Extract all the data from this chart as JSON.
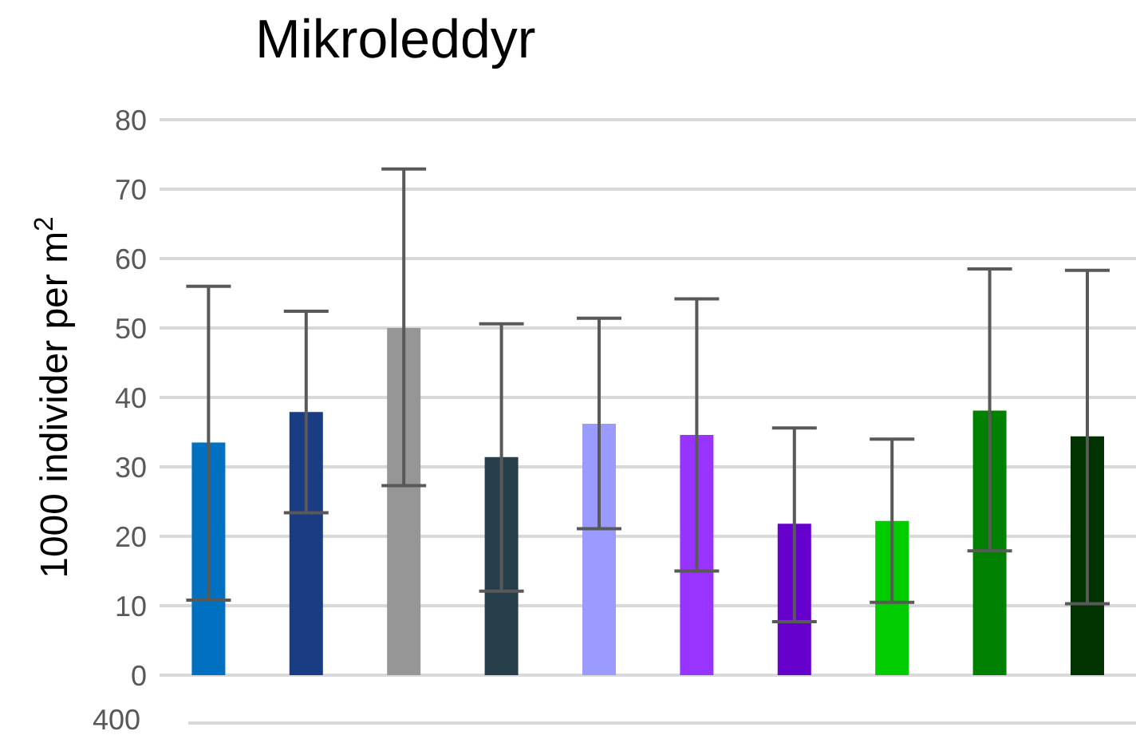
{
  "chart_data": {
    "type": "bar",
    "title": "Mikroleddyr",
    "ylabel": "1000 individer per m$^{2}$",
    "categories": [
      null,
      null,
      null,
      null,
      null,
      null,
      null,
      null,
      null,
      null
    ],
    "values": [
      33.5,
      37.9,
      50.0,
      31.4,
      36.2,
      34.6,
      21.8,
      22.2,
      38.1,
      34.4
    ],
    "colors": [
      "#0070c0",
      "#1a3c82",
      "#969696",
      "#263f4a",
      "#9b9bff",
      "#9933ff",
      "#6600cc",
      "#00cc00",
      "#008000",
      "#003300"
    ],
    "errors": [
      [
        10.8,
        56.0
      ],
      [
        23.4,
        52.4
      ],
      [
        27.3,
        72.9
      ],
      [
        12.1,
        50.6
      ],
      [
        21.1,
        51.4
      ],
      [
        15.0,
        54.2
      ],
      [
        7.7,
        35.6
      ],
      [
        10.5,
        34.0
      ],
      [
        17.9,
        58.5
      ],
      [
        10.3,
        58.3
      ]
    ],
    "ylim": [
      0,
      80
    ],
    "yticks": [
      0,
      10,
      20,
      30,
      40,
      50,
      60,
      70,
      80
    ],
    "grid": "y",
    "tick_labels": "y",
    "annotations": [
      "400"
    ]
  }
}
